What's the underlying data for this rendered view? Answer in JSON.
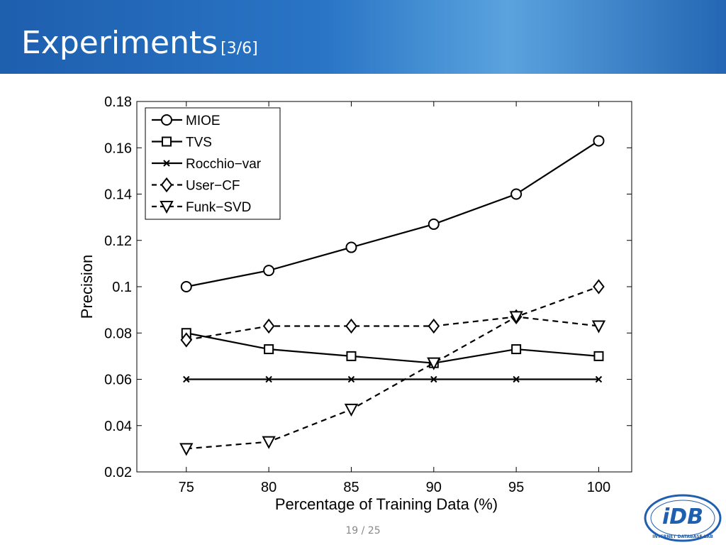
{
  "slide": {
    "title": "Experiments",
    "title_suffix": "[3/6]",
    "page": "19 / 25"
  },
  "logo": {
    "text": "iDB",
    "ring_text": "INTERNET DATABASE LAB"
  },
  "chart_data": {
    "type": "line",
    "xlabel": "Percentage of Training Data (%)",
    "ylabel": "Precision",
    "x": [
      75,
      80,
      85,
      90,
      95,
      100
    ],
    "xlim": [
      72,
      102
    ],
    "ylim": [
      0.02,
      0.18
    ],
    "xticks": [
      "75",
      "80",
      "85",
      "90",
      "95",
      "100"
    ],
    "yticks": [
      "0.02",
      "0.04",
      "0.06",
      "0.08",
      "0.1",
      "0.12",
      "0.14",
      "0.16",
      "0.18"
    ],
    "legend_position": "top-left",
    "grid": false,
    "series": [
      {
        "name": "MIOE",
        "marker": "circle",
        "dash": "solid",
        "values": [
          0.1,
          0.107,
          0.117,
          0.127,
          0.14,
          0.163
        ]
      },
      {
        "name": "TVS",
        "marker": "square",
        "dash": "solid",
        "values": [
          0.08,
          0.073,
          0.07,
          0.067,
          0.073,
          0.07
        ]
      },
      {
        "name": "Rocchio−var",
        "marker": "x",
        "dash": "solid",
        "values": [
          0.06,
          0.06,
          0.06,
          0.06,
          0.06,
          0.06
        ]
      },
      {
        "name": "User−CF",
        "marker": "diamond",
        "dash": "dashed",
        "values": [
          0.077,
          0.083,
          0.083,
          0.083,
          0.087,
          0.1
        ]
      },
      {
        "name": "Funk−SVD",
        "marker": "triangle-down",
        "dash": "dashed",
        "values": [
          0.03,
          0.033,
          0.047,
          0.067,
          0.087,
          0.083
        ]
      }
    ]
  }
}
